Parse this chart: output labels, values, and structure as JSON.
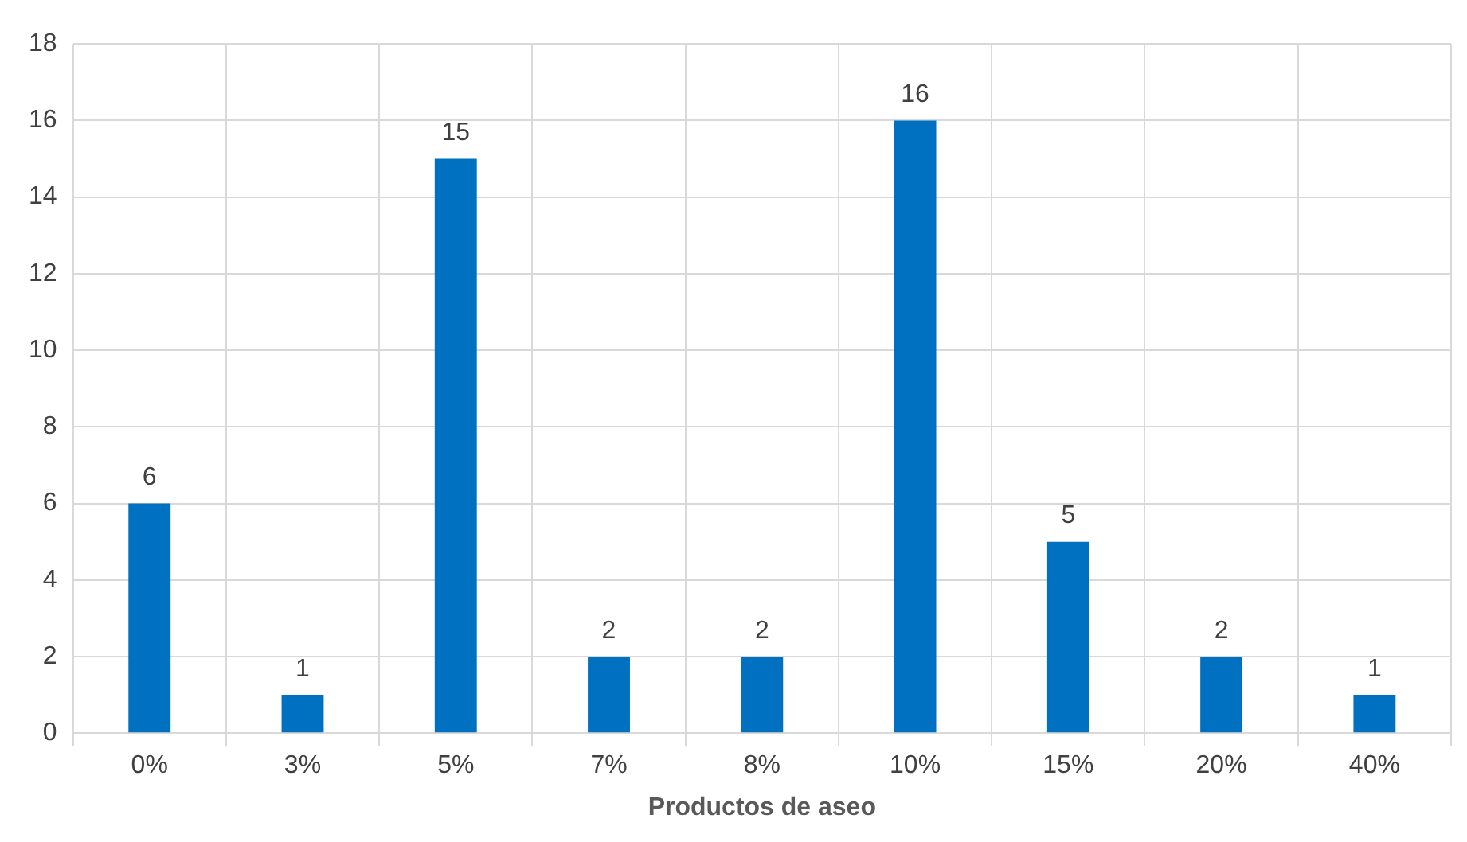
{
  "chart_data": {
    "type": "bar",
    "xlabel": "Productos de aseo",
    "categories": [
      "0%",
      "3%",
      "5%",
      "7%",
      "8%",
      "10%",
      "15%",
      "20%",
      "40%"
    ],
    "values": [
      6,
      1,
      15,
      2,
      2,
      16,
      5,
      2,
      1
    ],
    "color": "#0070c0",
    "ylim": [
      0,
      18
    ],
    "yticks": [
      0,
      2,
      4,
      6,
      8,
      10,
      12,
      14,
      16,
      18
    ],
    "grid": true,
    "data_labels": true
  }
}
